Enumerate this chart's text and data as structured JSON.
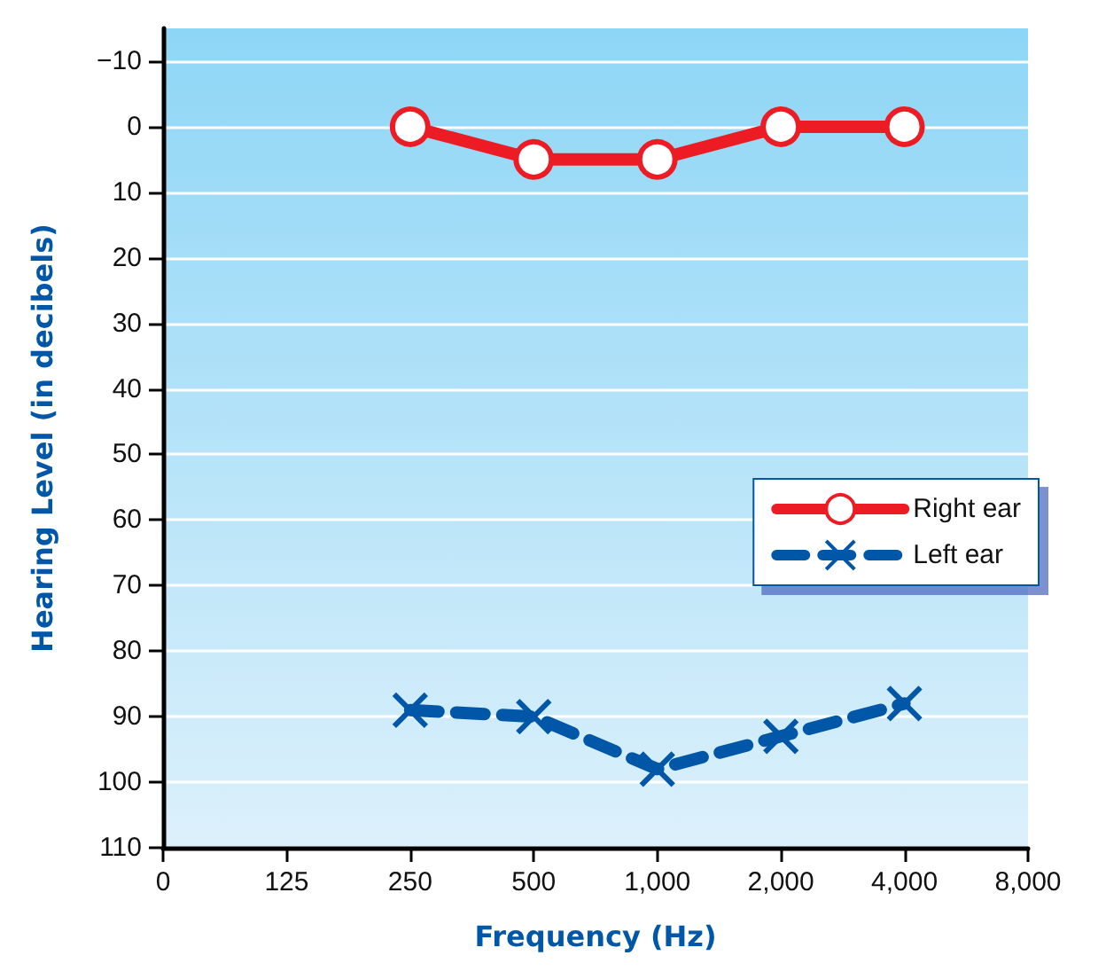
{
  "chart_data": {
    "type": "line",
    "xlabel": "Frequency (Hz)",
    "ylabel": "Hearing Level (in decibels)",
    "categories": [
      "0",
      "125",
      "250",
      "500",
      "1,000",
      "2,000",
      "4,000",
      "8,000"
    ],
    "series": [
      {
        "name": "Right ear",
        "color": "#ed1c24",
        "values": [
          null,
          null,
          0,
          5,
          5,
          0,
          0,
          null
        ],
        "marker": "circle",
        "line_style": "solid"
      },
      {
        "name": "Left ear",
        "color": "#0057a8",
        "values": [
          null,
          null,
          89,
          90,
          98,
          93,
          88,
          null
        ],
        "marker": "cross",
        "line_style": "dashed"
      }
    ],
    "ylim": [
      110,
      -15
    ],
    "yticks": [
      {
        "value": -10,
        "label": "−10"
      },
      0,
      10,
      20,
      30,
      40,
      50,
      60,
      70,
      80,
      90,
      100,
      110
    ],
    "grid": "y",
    "legend": "right"
  }
}
